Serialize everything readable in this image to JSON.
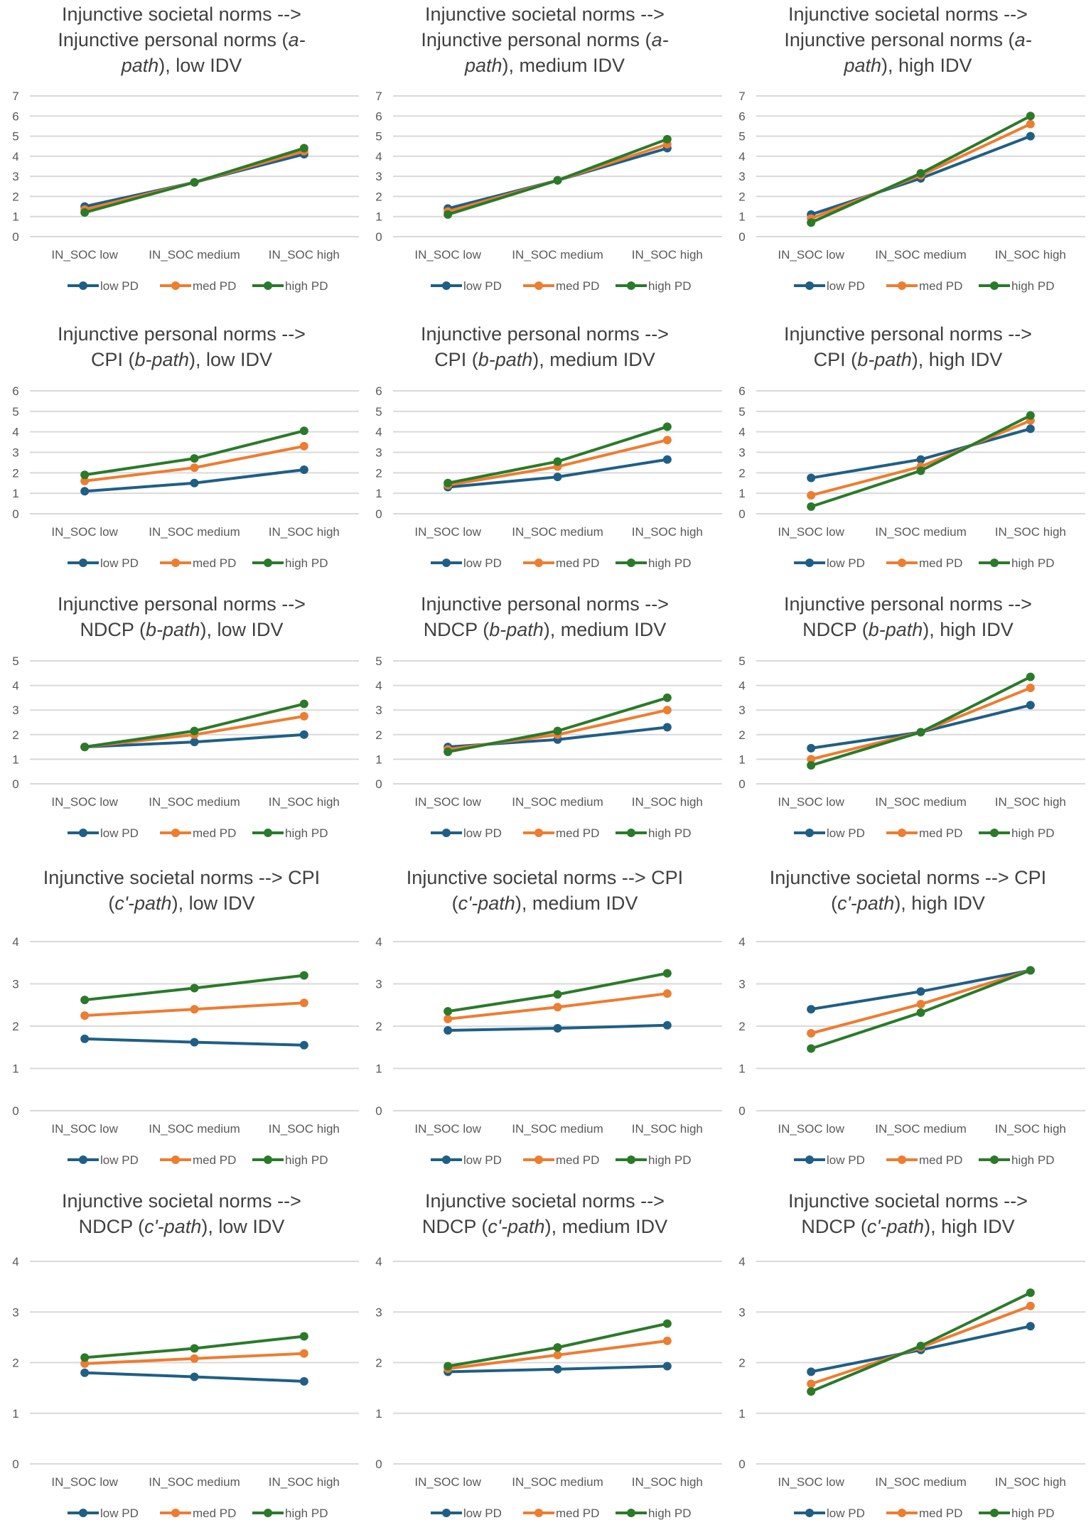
{
  "colors": {
    "low PD": "#1f5f85",
    "med PD": "#ed7d31",
    "high PD": "#2a7a2a",
    "grid": "#d9d9d9"
  },
  "chart_data": [
    {
      "type": "line",
      "title": [
        [
          {
            "t": "Injunctive societal norms -->"
          }
        ],
        [
          {
            "t": "Injunctive personal norms ("
          },
          {
            "t": "a-",
            "i": true
          }
        ],
        [
          {
            "t": "path",
            "i": true
          },
          {
            "t": "), low IDV"
          }
        ]
      ],
      "categories": [
        "IN_SOC low",
        "IN_SOC medium",
        "IN_SOC high"
      ],
      "ylim": [
        0,
        7
      ],
      "yticks": [
        "0",
        "1",
        "2",
        "3",
        "4",
        "5",
        "6",
        "7"
      ],
      "series": [
        {
          "name": "low PD",
          "values": [
            1.5,
            2.7,
            4.1
          ]
        },
        {
          "name": "med PD",
          "values": [
            1.35,
            2.7,
            4.25
          ]
        },
        {
          "name": "high PD",
          "values": [
            1.2,
            2.7,
            4.4
          ]
        }
      ]
    },
    {
      "type": "line",
      "title": [
        [
          {
            "t": "Injunctive societal norms -->"
          }
        ],
        [
          {
            "t": "Injunctive personal norms  ("
          },
          {
            "t": "a-",
            "i": true
          }
        ],
        [
          {
            "t": "path",
            "i": true
          },
          {
            "t": "), medium IDV"
          }
        ]
      ],
      "categories": [
        "IN_SOC low",
        "IN_SOC medium",
        "IN_SOC high"
      ],
      "ylim": [
        0,
        7
      ],
      "yticks": [
        "0",
        "1",
        "2",
        "3",
        "4",
        "5",
        "6",
        "7"
      ],
      "series": [
        {
          "name": "low PD",
          "values": [
            1.4,
            2.8,
            4.4
          ]
        },
        {
          "name": "med PD",
          "values": [
            1.25,
            2.8,
            4.6
          ]
        },
        {
          "name": "high PD",
          "values": [
            1.1,
            2.8,
            4.85
          ]
        }
      ]
    },
    {
      "type": "line",
      "title": [
        [
          {
            "t": "Injunctive societal norms -->"
          }
        ],
        [
          {
            "t": "Injunctive personal norms ("
          },
          {
            "t": "a-",
            "i": true
          }
        ],
        [
          {
            "t": "path",
            "i": true
          },
          {
            "t": "), high IDV"
          }
        ]
      ],
      "categories": [
        "IN_SOC low",
        "IN_SOC medium",
        "IN_SOC high"
      ],
      "ylim": [
        0,
        7
      ],
      "yticks": [
        "0",
        "1",
        "2",
        "3",
        "4",
        "5",
        "6",
        "7"
      ],
      "series": [
        {
          "name": "low PD",
          "values": [
            1.1,
            2.9,
            5.0
          ]
        },
        {
          "name": "med PD",
          "values": [
            0.9,
            3.05,
            5.6
          ]
        },
        {
          "name": "high PD",
          "values": [
            0.7,
            3.15,
            6.0
          ]
        }
      ]
    },
    {
      "type": "line",
      "title": [
        [
          {
            "t": "Injunctive personal norms -->"
          }
        ],
        [
          {
            "t": "CPI ("
          },
          {
            "t": "b-path",
            "i": true
          },
          {
            "t": "), low IDV"
          }
        ]
      ],
      "categories": [
        "IN_SOC low",
        "IN_SOC medium",
        "IN_SOC high"
      ],
      "ylim": [
        0,
        6
      ],
      "yticks": [
        "0",
        "1",
        "2",
        "3",
        "4",
        "5",
        "6"
      ],
      "series": [
        {
          "name": "low PD",
          "values": [
            1.1,
            1.5,
            2.15
          ]
        },
        {
          "name": "med PD",
          "values": [
            1.6,
            2.25,
            3.3
          ]
        },
        {
          "name": "high PD",
          "values": [
            1.9,
            2.7,
            4.05
          ]
        }
      ]
    },
    {
      "type": "line",
      "title": [
        [
          {
            "t": "Injunctive personal norms -->"
          }
        ],
        [
          {
            "t": "CPI ("
          },
          {
            "t": "b-path",
            "i": true
          },
          {
            "t": "), medium IDV"
          }
        ]
      ],
      "categories": [
        "IN_SOC low",
        "IN_SOC medium",
        "IN_SOC high"
      ],
      "ylim": [
        0,
        6
      ],
      "yticks": [
        "0",
        "1",
        "2",
        "3",
        "4",
        "5",
        "6"
      ],
      "series": [
        {
          "name": "low PD",
          "values": [
            1.3,
            1.8,
            2.65
          ]
        },
        {
          "name": "med PD",
          "values": [
            1.4,
            2.3,
            3.6
          ]
        },
        {
          "name": "high PD",
          "values": [
            1.5,
            2.55,
            4.25
          ]
        }
      ]
    },
    {
      "type": "line",
      "title": [
        [
          {
            "t": "Injunctive personal norms -->"
          }
        ],
        [
          {
            "t": "CPI ("
          },
          {
            "t": "b-path",
            "i": true
          },
          {
            "t": "), high IDV"
          }
        ]
      ],
      "categories": [
        "IN_SOC low",
        "IN_SOC medium",
        "IN_SOC high"
      ],
      "ylim": [
        0,
        6
      ],
      "yticks": [
        "0",
        "1",
        "2",
        "3",
        "4",
        "5",
        "6"
      ],
      "series": [
        {
          "name": "low PD",
          "values": [
            1.75,
            2.65,
            4.15
          ]
        },
        {
          "name": "med PD",
          "values": [
            0.9,
            2.3,
            4.55
          ]
        },
        {
          "name": "high PD",
          "values": [
            0.35,
            2.1,
            4.8
          ]
        }
      ]
    },
    {
      "type": "line",
      "title": [
        [
          {
            "t": "Injunctive personal norms -->"
          }
        ],
        [
          {
            "t": "NDCP ("
          },
          {
            "t": "b-path",
            "i": true
          },
          {
            "t": "), low IDV"
          }
        ]
      ],
      "categories": [
        "IN_SOC low",
        "IN_SOC medium",
        "IN_SOC high"
      ],
      "ylim": [
        0,
        5
      ],
      "yticks": [
        "0",
        "1",
        "2",
        "3",
        "4",
        "5"
      ],
      "series": [
        {
          "name": "low PD",
          "values": [
            1.5,
            1.7,
            2.0
          ]
        },
        {
          "name": "med PD",
          "values": [
            1.5,
            2.0,
            2.75
          ]
        },
        {
          "name": "high PD",
          "values": [
            1.5,
            2.15,
            3.25
          ]
        }
      ]
    },
    {
      "type": "line",
      "title": [
        [
          {
            "t": "Injunctive personal norms -->"
          }
        ],
        [
          {
            "t": "NDCP ("
          },
          {
            "t": "b-path",
            "i": true
          },
          {
            "t": "), medium IDV"
          }
        ]
      ],
      "categories": [
        "IN_SOC low",
        "IN_SOC medium",
        "IN_SOC high"
      ],
      "ylim": [
        0,
        5
      ],
      "yticks": [
        "0",
        "1",
        "2",
        "3",
        "4",
        "5"
      ],
      "series": [
        {
          "name": "low PD",
          "values": [
            1.5,
            1.8,
            2.3
          ]
        },
        {
          "name": "med PD",
          "values": [
            1.4,
            2.0,
            3.0
          ]
        },
        {
          "name": "high PD",
          "values": [
            1.3,
            2.15,
            3.5
          ]
        }
      ]
    },
    {
      "type": "line",
      "title": [
        [
          {
            "t": "Injunctive personal norms -->"
          }
        ],
        [
          {
            "t": "NDCP ("
          },
          {
            "t": "b-path",
            "i": true
          },
          {
            "t": "), high IDV"
          }
        ]
      ],
      "categories": [
        "IN_SOC low",
        "IN_SOC medium",
        "IN_SOC high"
      ],
      "ylim": [
        0,
        5
      ],
      "yticks": [
        "0",
        "1",
        "2",
        "3",
        "4",
        "5"
      ],
      "series": [
        {
          "name": "low PD",
          "values": [
            1.45,
            2.1,
            3.2
          ]
        },
        {
          "name": "med PD",
          "values": [
            1.0,
            2.1,
            3.9
          ]
        },
        {
          "name": "high PD",
          "values": [
            0.75,
            2.1,
            4.35
          ]
        }
      ]
    },
    {
      "type": "line",
      "title": [
        [
          {
            "t": "Injunctive societal norms --> CPI"
          }
        ],
        [
          {
            "t": "("
          },
          {
            "t": "c'-path",
            "i": true
          },
          {
            "t": "), low IDV"
          }
        ]
      ],
      "categories": [
        "IN_SOC low",
        "IN_SOC medium",
        "IN_SOC high"
      ],
      "ylim": [
        0,
        4
      ],
      "yticks": [
        "0",
        "1",
        "2",
        "3",
        "4"
      ],
      "series": [
        {
          "name": "low PD",
          "values": [
            1.7,
            1.62,
            1.55
          ]
        },
        {
          "name": "med PD",
          "values": [
            2.25,
            2.4,
            2.55
          ]
        },
        {
          "name": "high PD",
          "values": [
            2.62,
            2.9,
            3.2
          ]
        }
      ]
    },
    {
      "type": "line",
      "title": [
        [
          {
            "t": "Injunctive societal norms --> CPI"
          }
        ],
        [
          {
            "t": "("
          },
          {
            "t": "c'-path",
            "i": true
          },
          {
            "t": "), medium IDV"
          }
        ]
      ],
      "categories": [
        "IN_SOC low",
        "IN_SOC medium",
        "IN_SOC high"
      ],
      "ylim": [
        0,
        4
      ],
      "yticks": [
        "0",
        "1",
        "2",
        "3",
        "4"
      ],
      "series": [
        {
          "name": "low PD",
          "values": [
            1.9,
            1.95,
            2.02
          ]
        },
        {
          "name": "med PD",
          "values": [
            2.17,
            2.45,
            2.77
          ]
        },
        {
          "name": "high PD",
          "values": [
            2.35,
            2.75,
            3.25
          ]
        }
      ]
    },
    {
      "type": "line",
      "title": [
        [
          {
            "t": "Injunctive societal norms --> CPI"
          }
        ],
        [
          {
            "t": "("
          },
          {
            "t": "c'-path",
            "i": true
          },
          {
            "t": "), high IDV"
          }
        ]
      ],
      "categories": [
        "IN_SOC low",
        "IN_SOC medium",
        "IN_SOC high"
      ],
      "ylim": [
        0,
        4
      ],
      "yticks": [
        "0",
        "1",
        "2",
        "3",
        "4"
      ],
      "series": [
        {
          "name": "low PD",
          "values": [
            2.4,
            2.82,
            3.32
          ]
        },
        {
          "name": "med PD",
          "values": [
            1.83,
            2.52,
            3.32
          ]
        },
        {
          "name": "high PD",
          "values": [
            1.47,
            2.32,
            3.32
          ]
        }
      ]
    },
    {
      "type": "line",
      "title": [
        [
          {
            "t": "Injunctive societal norms -->"
          }
        ],
        [
          {
            "t": "NDCP ("
          },
          {
            "t": "c'-path",
            "i": true
          },
          {
            "t": "), low IDV"
          }
        ]
      ],
      "categories": [
        "IN_SOC low",
        "IN_SOC medium",
        "IN_SOC high"
      ],
      "ylim": [
        0,
        4
      ],
      "yticks": [
        "0",
        "1",
        "2",
        "3",
        "4"
      ],
      "series": [
        {
          "name": "low PD",
          "values": [
            1.8,
            1.72,
            1.63
          ]
        },
        {
          "name": "med PD",
          "values": [
            1.98,
            2.08,
            2.18
          ]
        },
        {
          "name": "high PD",
          "values": [
            2.1,
            2.28,
            2.52
          ]
        }
      ]
    },
    {
      "type": "line",
      "title": [
        [
          {
            "t": "Injunctive societal norms -->"
          }
        ],
        [
          {
            "t": "NDCP ("
          },
          {
            "t": "c'-path",
            "i": true
          },
          {
            "t": "), medium IDV"
          }
        ]
      ],
      "categories": [
        "IN_SOC low",
        "IN_SOC medium",
        "IN_SOC high"
      ],
      "ylim": [
        0,
        4
      ],
      "yticks": [
        "0",
        "1",
        "2",
        "3",
        "4"
      ],
      "series": [
        {
          "name": "low PD",
          "values": [
            1.82,
            1.87,
            1.93
          ]
        },
        {
          "name": "med PD",
          "values": [
            1.88,
            2.15,
            2.43
          ]
        },
        {
          "name": "high PD",
          "values": [
            1.93,
            2.3,
            2.77
          ]
        }
      ]
    },
    {
      "type": "line",
      "title": [
        [
          {
            "t": "Injunctive societal norms -->"
          }
        ],
        [
          {
            "t": "NDCP ("
          },
          {
            "t": "c'-path",
            "i": true
          },
          {
            "t": "), high IDV"
          }
        ]
      ],
      "categories": [
        "IN_SOC low",
        "IN_SOC medium",
        "IN_SOC high"
      ],
      "ylim": [
        0,
        4
      ],
      "yticks": [
        "0",
        "1",
        "2",
        "3",
        "4"
      ],
      "series": [
        {
          "name": "low PD",
          "values": [
            1.82,
            2.25,
            2.72
          ]
        },
        {
          "name": "med PD",
          "values": [
            1.58,
            2.3,
            3.12
          ]
        },
        {
          "name": "high PD",
          "values": [
            1.43,
            2.33,
            3.38
          ]
        }
      ]
    }
  ]
}
